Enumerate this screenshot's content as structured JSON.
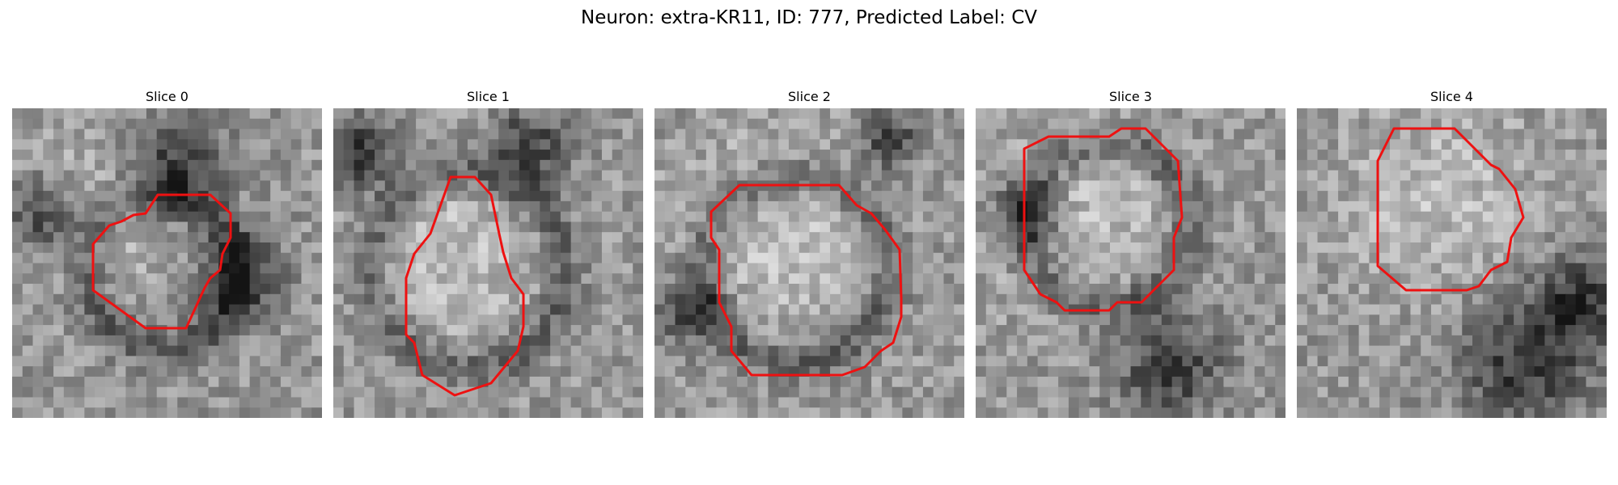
{
  "figure": {
    "title": "Neuron: extra-KR11, ID: 777, Predicted Label: CV"
  },
  "panels": [
    {
      "title": "Slice 0"
    },
    {
      "title": "Slice 1"
    },
    {
      "title": "Slice 2"
    },
    {
      "title": "Slice 3"
    },
    {
      "title": "Slice 4"
    }
  ],
  "colors": {
    "contour": "#ee1111",
    "background": "#ffffff"
  }
}
